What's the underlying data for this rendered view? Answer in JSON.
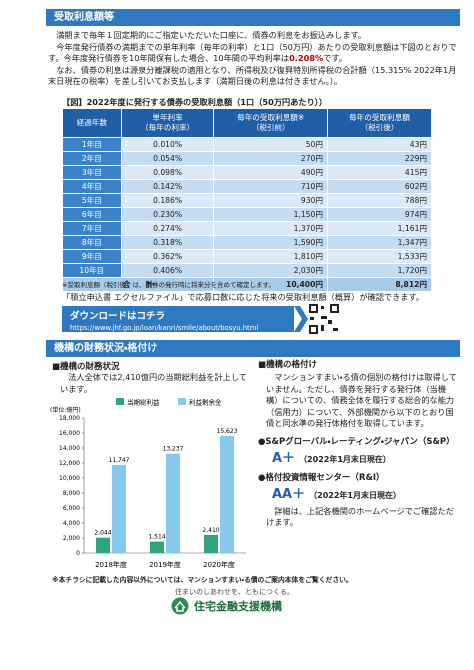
{
  "section1": {
    "heading": "受取利息額等",
    "p1": "満期まで毎年１回定期的にご指定いただいた口座に、債券の利息をお振込みします。",
    "p2": "今年度発行債券の満期までの単年利率（毎年の利率）と1口（50万円）あたりの受取利息額は下図のとおりです。今年度発行債券を10年間保有した場合、10年間の平均利率は",
    "p2_bold": "0.208%",
    "p2_end": "です。",
    "p3": "なお、債券の利息は源泉分離課税の適用となり、所得税及び復興特別所得税の合計額（15.315% 2022年1月末日現在の税率）を差し引いてお支払します（満期日後の利息は付きません。）。"
  },
  "table": {
    "caption": "【図】2022年度に発行する債券の受取利息額（1口（50万円あたり））",
    "header": [
      [
        "経過年数"
      ],
      [
        "単年利率",
        "（毎年の利率）"
      ],
      [
        "毎年の受取利息額※",
        "（税引前）"
      ],
      [
        "毎年の受取利息額",
        "（税引後）"
      ]
    ],
    "rows": [
      [
        "1年目",
        "0.010%",
        "50円",
        "43円"
      ],
      [
        "2年目",
        "0.054%",
        "270円",
        "229円"
      ],
      [
        "3年目",
        "0.098%",
        "490円",
        "415円"
      ],
      [
        "4年目",
        "0.142%",
        "710円",
        "602円"
      ],
      [
        "5年目",
        "0.186%",
        "930円",
        "788円"
      ],
      [
        "6年目",
        "0.230%",
        "1,150円",
        "974円"
      ],
      [
        "7年目",
        "0.274%",
        "1,370円",
        "1,161円"
      ],
      [
        "8年目",
        "0.318%",
        "1,590円",
        "1,347円"
      ],
      [
        "9年目",
        "0.362%",
        "1,810円",
        "1,533円"
      ],
      [
        "10年目",
        "0.406%",
        "2,030円",
        "1,720円"
      ]
    ],
    "total": {
      "label": "合　　計",
      "pre_tax": "10,400円",
      "post_tax": "8,812円"
    },
    "note": "※受取利息額（税引後）は、債券の発行時に将来分を含めて確定します。"
  },
  "excel_note": "「積立申込書 エクセルファイル」で応募口数に応じた将来の受取利息額（概算）が確認できます。",
  "download": {
    "label": "ダウンロードはコチラ",
    "url": "https://www.jhf.go.jp/loan/kanri/smile/about/bosyu.html"
  },
  "section2": {
    "heading": "機構の財務状況・格付け"
  },
  "finance": {
    "heading": "■機構の財務状況",
    "text": "法人全体では2,410億円の当期総利益を計上しています。"
  },
  "chart_data": {
    "type": "bar",
    "y_label": "(単位:億円)",
    "categories": [
      "2018年度",
      "2019年度",
      "2020年度"
    ],
    "series": [
      {
        "name": "当期総利益",
        "color": "#2fa57c",
        "values": [
          2044,
          1514,
          2410
        ],
        "value_labels": [
          "2,044",
          "1,514",
          "2,410"
        ]
      },
      {
        "name": "利益剰余金",
        "color": "#86c8ee",
        "values": [
          11747,
          13237,
          15623
        ],
        "value_labels": [
          "11,747",
          "13,237",
          "15,623"
        ]
      }
    ],
    "ylim": [
      0,
      18000
    ],
    "yticks": [
      0,
      {
        "value": 2000,
        "label": "2,000"
      },
      {
        "value": 4000,
        "label": "4,000"
      },
      {
        "value": 6000,
        "label": "6,000"
      },
      {
        "value": 8000,
        "label": "8,000"
      },
      {
        "value": 10000,
        "label": "10,000"
      },
      {
        "value": 12000,
        "label": "12,000"
      },
      {
        "value": 14000,
        "label": "14,000"
      },
      {
        "value": 16000,
        "label": "16,000"
      },
      {
        "value": 18000,
        "label": "18,000"
      }
    ],
    "legend": "top",
    "grid": false
  },
  "rating": {
    "heading": "■機構の格付け",
    "text": "マンションすまい・る債の個別の格付けは取得していません。ただし、債券を発行する発行体（当機構）についての、債務全体を履行する総合的な能力（信用力）について、外部機関から以下のとおり国債と同水準の発行体格付を取得しています。",
    "agencies": [
      {
        "name": "●S&Pグローバル・レーティング・ジャパン（S&P）",
        "grade": "A＋",
        "date": "（2022年1月末日現在）"
      },
      {
        "name": "●格付投資情報センター（R&I）",
        "grade": "AA＋",
        "date": "（2022年1月末日現在）"
      }
    ],
    "detail": "詳細は、上記各機関のホームページでご確認ただけます。"
  },
  "footer": {
    "note": "※本チラシに記載した内容以外については、マンションすまい・る債のご案内本体をご覧ください。",
    "tagline": "住まいのしあわせを、ともにつくる。",
    "org": "住宅金融支援機構"
  }
}
